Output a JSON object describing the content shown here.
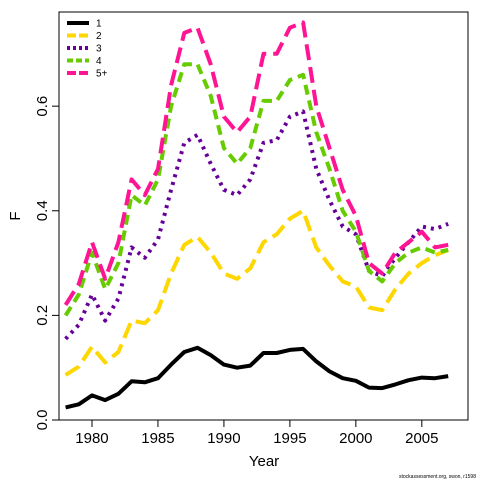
{
  "chart_data": {
    "type": "line",
    "xlabel": "Year",
    "ylabel": "F",
    "xlim": [
      1977.5,
      2008.5
    ],
    "ylim": [
      0,
      0.78
    ],
    "x_ticks": [
      1980,
      1985,
      1990,
      1995,
      2000,
      2005
    ],
    "x_tick_labels": [
      "1980",
      "1985",
      "1990",
      "1995",
      "2000",
      "2005"
    ],
    "y_ticks": [
      0.0,
      0.2,
      0.4,
      0.6
    ],
    "y_tick_labels": [
      "0.0",
      "0.2",
      "0.4",
      "0.6"
    ],
    "grid": false,
    "legend_position": "top-left",
    "x": [
      1978,
      1979,
      1980,
      1981,
      1982,
      1983,
      1984,
      1985,
      1986,
      1987,
      1988,
      1989,
      1990,
      1991,
      1992,
      1993,
      1994,
      1995,
      1996,
      1997,
      1998,
      1999,
      2000,
      2001,
      2002,
      2003,
      2004,
      2005,
      2006,
      2007
    ],
    "series": [
      {
        "name": "1",
        "color": "#000000",
        "dash": "solid",
        "values": [
          0.024,
          0.03,
          0.047,
          0.038,
          0.05,
          0.074,
          0.072,
          0.08,
          0.106,
          0.13,
          0.138,
          0.124,
          0.106,
          0.1,
          0.104,
          0.128,
          0.128,
          0.134,
          0.136,
          0.112,
          0.093,
          0.08,
          0.075,
          0.062,
          0.061,
          0.068,
          0.076,
          0.081,
          0.08,
          0.084
        ]
      },
      {
        "name": "2",
        "color": "#ffd700",
        "dash": "longdash",
        "values": [
          0.086,
          0.102,
          0.14,
          0.11,
          0.13,
          0.19,
          0.185,
          0.21,
          0.28,
          0.335,
          0.35,
          0.32,
          0.28,
          0.27,
          0.29,
          0.34,
          0.355,
          0.385,
          0.4,
          0.33,
          0.295,
          0.265,
          0.255,
          0.215,
          0.21,
          0.25,
          0.28,
          0.3,
          0.315,
          0.325
        ]
      },
      {
        "name": "3",
        "color": "#660099",
        "dash": "dotted",
        "values": [
          0.155,
          0.182,
          0.24,
          0.19,
          0.232,
          0.33,
          0.31,
          0.345,
          0.44,
          0.53,
          0.545,
          0.49,
          0.44,
          0.43,
          0.46,
          0.53,
          0.535,
          0.58,
          0.59,
          0.48,
          0.42,
          0.37,
          0.355,
          0.285,
          0.275,
          0.31,
          0.34,
          0.37,
          0.365,
          0.375
        ]
      },
      {
        "name": "4",
        "color": "#66cc00",
        "dash": "dashed",
        "values": [
          0.2,
          0.24,
          0.32,
          0.25,
          0.3,
          0.43,
          0.41,
          0.46,
          0.6,
          0.68,
          0.68,
          0.62,
          0.52,
          0.49,
          0.52,
          0.61,
          0.61,
          0.65,
          0.66,
          0.55,
          0.48,
          0.4,
          0.36,
          0.285,
          0.265,
          0.3,
          0.32,
          0.33,
          0.32,
          0.325
        ]
      },
      {
        "name": "5+",
        "color": "#ff1493",
        "dash": "longdash",
        "values": [
          0.22,
          0.26,
          0.34,
          0.27,
          0.34,
          0.46,
          0.43,
          0.48,
          0.64,
          0.74,
          0.75,
          0.68,
          0.58,
          0.55,
          0.58,
          0.7,
          0.7,
          0.75,
          0.76,
          0.6,
          0.52,
          0.44,
          0.39,
          0.3,
          0.28,
          0.32,
          0.34,
          0.36,
          0.33,
          0.335
        ]
      }
    ]
  },
  "credit": "stockassessment.org, swon, r1598"
}
